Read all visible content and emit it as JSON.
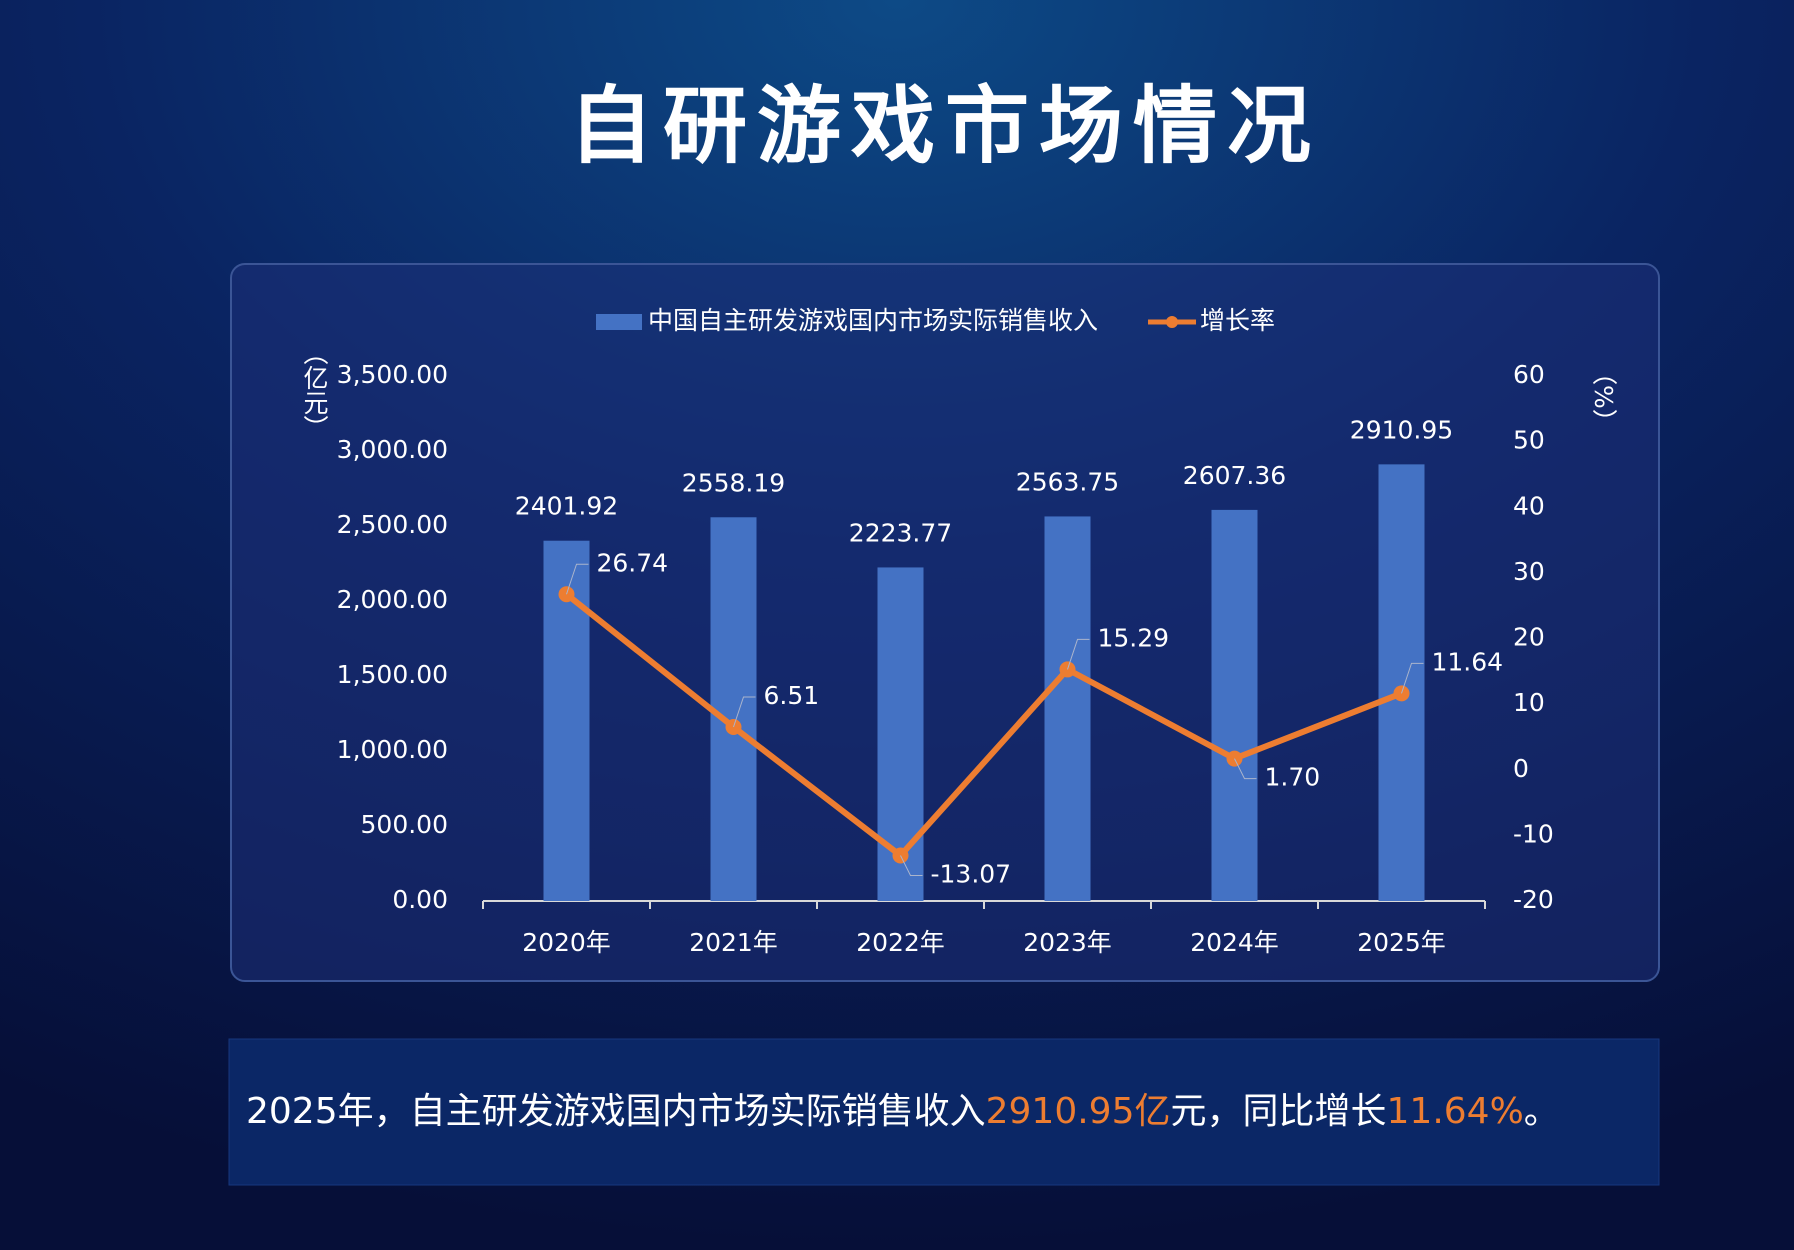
{
  "title": "自研游戏市场情况",
  "chart_data": {
    "type": "bar",
    "categories": [
      "2020年",
      "2021年",
      "2022年",
      "2023年",
      "2024年",
      "2025年"
    ],
    "series": [
      {
        "name": "中国自主研发游戏国内市场实际销售收入",
        "type": "bar",
        "color": "#4472c4",
        "values": [
          2401.92,
          2558.19,
          2223.77,
          2563.75,
          2607.36,
          2910.95
        ]
      },
      {
        "name": "增长率",
        "type": "line",
        "axis": "y2",
        "color": "#ed7d31",
        "values": [
          26.74,
          6.51,
          -13.07,
          15.29,
          1.7,
          11.64
        ],
        "value_labels": [
          "26.74",
          "6.51",
          "-13.07",
          "15.29",
          "1.70",
          "11.64"
        ]
      }
    ],
    "y_label": "（亿元）",
    "y2_label": "（%）",
    "ylim": [
      0,
      3500
    ],
    "yticks": [
      {
        "value": 0,
        "label": "0.00"
      },
      {
        "value": 500,
        "label": "500.00"
      },
      {
        "value": 1000,
        "label": "1,000.00"
      },
      {
        "value": 1500,
        "label": "1,500.00"
      },
      {
        "value": 2000,
        "label": "2,000.00"
      },
      {
        "value": 2500,
        "label": "2,500.00"
      },
      {
        "value": 3000,
        "label": "3,000.00"
      },
      {
        "value": 3500,
        "label": "3,500.00"
      }
    ],
    "y2lim": [
      -20,
      60
    ],
    "y2ticks": [
      -20,
      -10,
      0,
      10,
      20,
      30,
      40,
      50,
      60
    ],
    "legend": "top"
  },
  "summary": {
    "parts": [
      "2025年，自主研发游戏国内市场实际销售收入",
      "2910.95亿",
      "元，同比增长",
      "11.64%",
      "。"
    ]
  }
}
